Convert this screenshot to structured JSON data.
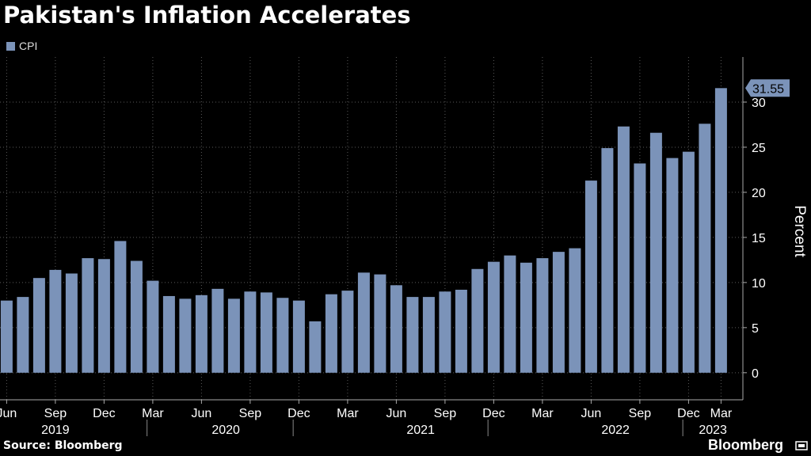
{
  "title": "Pakistan's Inflation Accelerates",
  "source": "Source: Bloomberg",
  "brand": "Bloomberg",
  "colors": {
    "bar": "#7b93b9",
    "background": "#000000",
    "grid": "#5a5a5a",
    "text": "#ffffff"
  },
  "chart_data": {
    "type": "bar",
    "title": "Pakistan's Inflation Accelerates",
    "xlabel": "",
    "ylabel": "Percent",
    "ylim": [
      -3,
      35
    ],
    "yticks": [
      0,
      5,
      10,
      15,
      20,
      25,
      30
    ],
    "grid": true,
    "legend": "top-left",
    "series": [
      {
        "name": "CPI",
        "values": [
          8.0,
          8.4,
          10.5,
          11.4,
          11.0,
          12.7,
          12.6,
          14.6,
          12.4,
          10.2,
          8.5,
          8.2,
          8.6,
          9.3,
          8.2,
          9.0,
          8.9,
          8.3,
          8.0,
          5.7,
          8.7,
          9.1,
          11.1,
          10.9,
          9.7,
          8.4,
          8.4,
          9.0,
          9.2,
          11.5,
          12.3,
          13.0,
          12.2,
          12.7,
          13.4,
          13.8,
          21.3,
          24.9,
          27.3,
          23.2,
          26.6,
          23.8,
          24.5,
          27.6,
          31.55
        ]
      }
    ],
    "month_labels": [
      "Jun",
      "Sep",
      "Dec",
      "Mar",
      "Jun",
      "Sep",
      "Dec",
      "Mar",
      "Jun",
      "Sep",
      "Dec",
      "Mar",
      "Jun",
      "Sep",
      "Dec",
      "Mar"
    ],
    "year_labels": [
      "2019",
      "2020",
      "2021",
      "2022",
      "2023"
    ],
    "last_value_label": "31.55"
  }
}
